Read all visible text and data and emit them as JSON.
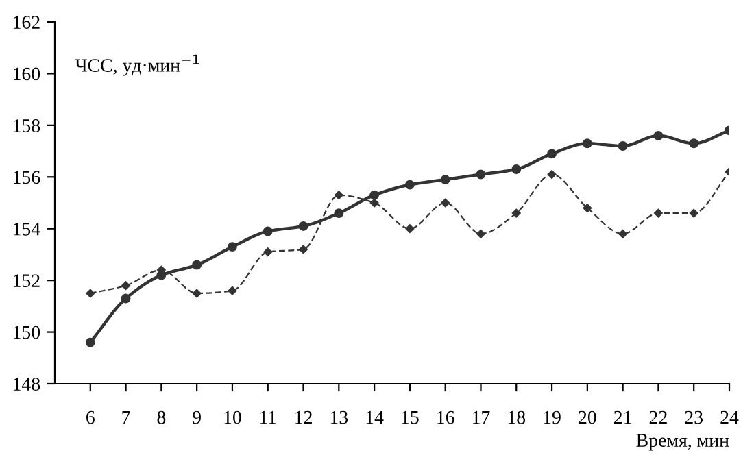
{
  "chart_data": {
    "type": "line",
    "xlabel": "Время, мин",
    "ylabel": "ЧСС, уд·мин$^{−1}$",
    "x": [
      6,
      7,
      8,
      9,
      10,
      11,
      12,
      13,
      14,
      15,
      16,
      17,
      18,
      19,
      20,
      21,
      22,
      23,
      24
    ],
    "xlim": [
      5,
      24
    ],
    "xticks": [
      6,
      7,
      8,
      9,
      10,
      11,
      12,
      13,
      14,
      15,
      16,
      17,
      18,
      19,
      20,
      21,
      22,
      23,
      24
    ],
    "ylim": [
      148,
      162
    ],
    "yticks": [
      148,
      150,
      152,
      154,
      156,
      158,
      160,
      162
    ],
    "grid": false,
    "legend": false,
    "series": [
      {
        "color": "#333333",
        "line_style": "solid",
        "marker": "circle",
        "values": [
          149.6,
          151.3,
          152.2,
          152.6,
          153.3,
          153.9,
          154.1,
          154.6,
          155.3,
          155.7,
          155.9,
          156.1,
          156.3,
          156.9,
          157.3,
          157.2,
          157.6,
          157.3,
          157.8
        ]
      },
      {
        "color": "#333333",
        "line_style": "dashed",
        "marker": "diamond",
        "values": [
          151.5,
          151.8,
          152.4,
          151.5,
          151.6,
          153.1,
          153.2,
          155.3,
          155.0,
          154.0,
          155.0,
          153.8,
          154.6,
          156.1,
          154.8,
          153.8,
          154.6,
          154.6,
          156.2
        ]
      }
    ]
  }
}
